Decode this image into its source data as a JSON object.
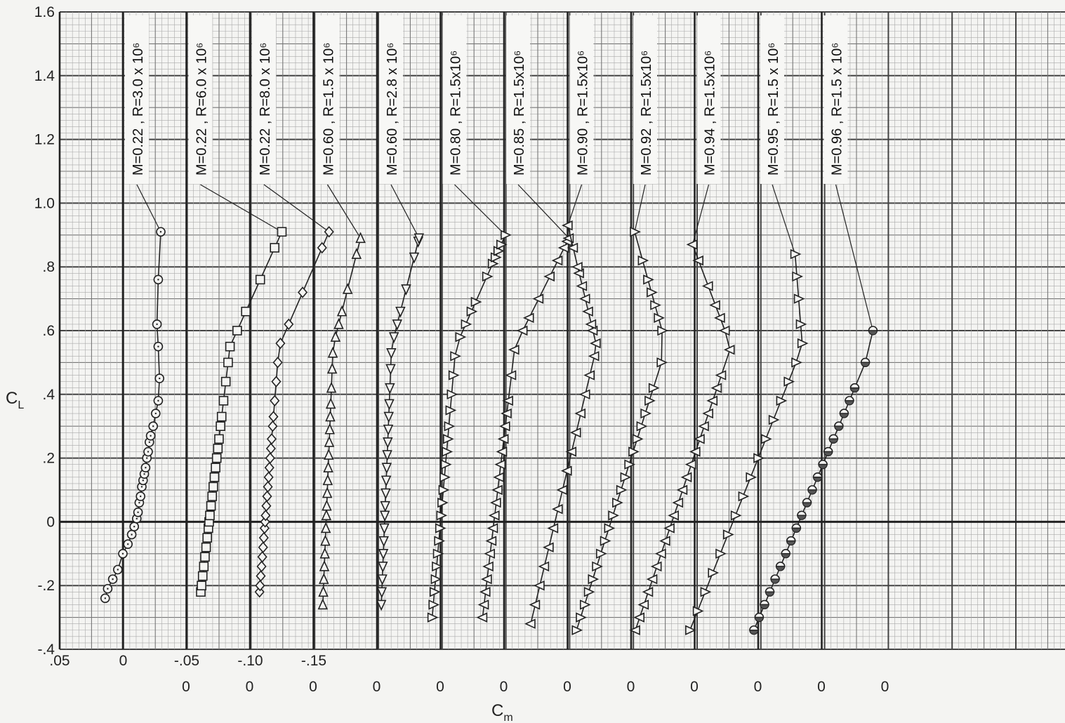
{
  "chart_data": {
    "type": "line",
    "title": "",
    "xlabel": "C",
    "xlabel_sub": "m",
    "ylabel": "C",
    "ylabel_sub": "L",
    "ylim": [
      -0.4,
      1.6
    ],
    "y_ticks": [
      "1.6",
      "1.4",
      "1.2",
      "1.0",
      ".8",
      ".6",
      ".4",
      ".2",
      "0",
      "-.2",
      "-.4"
    ],
    "x_ticks_first_row": [
      ".05",
      "0",
      "-.05",
      "-.10",
      "-.15"
    ],
    "x_ticks_offset_zeros": [
      "0",
      "0",
      "0",
      "0",
      "0",
      "0",
      "0",
      "0",
      "0",
      "0",
      "0",
      "0"
    ],
    "grid": true,
    "series": [
      {
        "name": "M=0.22 , R=3.0 x 10⁶",
        "marker": "circle",
        "x": [
          0.014,
          0.012,
          0.008,
          0.004,
          0.0,
          -0.004,
          -0.007,
          -0.009,
          -0.011,
          -0.012,
          -0.013,
          -0.014,
          -0.015,
          -0.016,
          -0.017,
          -0.018,
          -0.019,
          -0.02,
          -0.021,
          -0.022,
          -0.024,
          -0.026,
          -0.028,
          -0.029,
          -0.028,
          -0.027,
          -0.028,
          -0.03
        ],
        "y": [
          -0.24,
          -0.21,
          -0.18,
          -0.15,
          -0.1,
          -0.07,
          -0.04,
          -0.015,
          0.01,
          0.03,
          0.06,
          0.08,
          0.11,
          0.13,
          0.15,
          0.17,
          0.2,
          0.22,
          0.25,
          0.27,
          0.3,
          0.34,
          0.38,
          0.45,
          0.55,
          0.62,
          0.76,
          0.91
        ]
      },
      {
        "name": "M=0.22 , R=6.0 x 10⁶",
        "marker": "square",
        "y": [
          -0.22,
          -0.2,
          -0.17,
          -0.14,
          -0.11,
          -0.08,
          -0.05,
          -0.02,
          0.0,
          0.02,
          0.05,
          0.08,
          0.11,
          0.14,
          0.17,
          0.2,
          0.23,
          0.26,
          0.3,
          0.33,
          0.38,
          0.44,
          0.5,
          0.55,
          0.6,
          0.66,
          0.76,
          0.86,
          0.91
        ]
      },
      {
        "name": "M=0.22 , R=8.0 x 10⁶",
        "marker": "diamond",
        "y": [
          -0.22,
          -0.2,
          -0.17,
          -0.14,
          -0.11,
          -0.08,
          -0.05,
          -0.02,
          0.0,
          0.02,
          0.05,
          0.08,
          0.11,
          0.14,
          0.17,
          0.2,
          0.23,
          0.26,
          0.3,
          0.33,
          0.38,
          0.44,
          0.5,
          0.56,
          0.62,
          0.72,
          0.86,
          0.91
        ]
      },
      {
        "name": "M=0.60 , R=1.5 x 10⁶",
        "marker": "triangle-up",
        "y": [
          -0.26,
          -0.22,
          -0.18,
          -0.14,
          -0.1,
          -0.06,
          -0.02,
          0.02,
          0.05,
          0.09,
          0.13,
          0.17,
          0.21,
          0.25,
          0.29,
          0.33,
          0.37,
          0.42,
          0.48,
          0.53,
          0.58,
          0.62,
          0.66,
          0.73,
          0.84,
          0.89
        ]
      },
      {
        "name": "M=0.60 , R=2.8 x 10⁶",
        "marker": "triangle-down",
        "y": [
          -0.26,
          -0.22,
          -0.18,
          -0.14,
          -0.1,
          -0.06,
          -0.02,
          0.02,
          0.05,
          0.09,
          0.13,
          0.17,
          0.21,
          0.25,
          0.29,
          0.33,
          0.37,
          0.42,
          0.48,
          0.53,
          0.58,
          0.62,
          0.66,
          0.73,
          0.83,
          0.88,
          0.89
        ]
      },
      {
        "name": "M=0.80 , R=1.5x10⁶",
        "marker": "triangle-right",
        "y": [
          -0.3,
          -0.26,
          -0.22,
          -0.18,
          -0.14,
          -0.1,
          -0.06,
          -0.02,
          0.02,
          0.06,
          0.1,
          0.14,
          0.18,
          0.22,
          0.26,
          0.3,
          0.35,
          0.4,
          0.46,
          0.52,
          0.58,
          0.62,
          0.66,
          0.69,
          0.77,
          0.81,
          0.83,
          0.85,
          0.87,
          0.9
        ]
      },
      {
        "name": "M=0.85 , R=1.5x10⁶",
        "marker": "triangle-left",
        "y": [
          -0.3,
          -0.26,
          -0.22,
          -0.18,
          -0.14,
          -0.1,
          -0.06,
          -0.02,
          0.02,
          0.06,
          0.1,
          0.14,
          0.18,
          0.22,
          0.26,
          0.3,
          0.34,
          0.38,
          0.46,
          0.54,
          0.6,
          0.64,
          0.7,
          0.77,
          0.82,
          0.86,
          0.88,
          0.89
        ]
      },
      {
        "name": "M=0.90 , R=1.5x10⁶",
        "marker": "triangle-left",
        "y": [
          -0.32,
          -0.26,
          -0.2,
          -0.14,
          -0.08,
          -0.02,
          0.04,
          0.1,
          0.16,
          0.22,
          0.28,
          0.34,
          0.4,
          0.46,
          0.52,
          0.56,
          0.6,
          0.62,
          0.66,
          0.7,
          0.74,
          0.78,
          0.8,
          0.86,
          0.93
        ]
      },
      {
        "name": "M=0.92 , R=1.5x10⁶",
        "marker": "triangle-right",
        "y": [
          -0.34,
          -0.3,
          -0.26,
          -0.22,
          -0.18,
          -0.14,
          -0.1,
          -0.06,
          -0.02,
          0.02,
          0.06,
          0.1,
          0.14,
          0.18,
          0.22,
          0.26,
          0.3,
          0.34,
          0.38,
          0.42,
          0.5,
          0.6,
          0.64,
          0.68,
          0.72,
          0.76,
          0.82,
          0.91
        ]
      },
      {
        "name": "M=0.94 , R=1.5x10⁶",
        "marker": "triangle-left",
        "y": [
          -0.34,
          -0.3,
          -0.26,
          -0.22,
          -0.18,
          -0.14,
          -0.1,
          -0.06,
          -0.02,
          0.02,
          0.06,
          0.1,
          0.14,
          0.18,
          0.22,
          0.26,
          0.3,
          0.34,
          0.38,
          0.42,
          0.46,
          0.54,
          0.6,
          0.64,
          0.68,
          0.74,
          0.82,
          0.87
        ]
      },
      {
        "name": "M=0.95 , R=1.5 x 10⁶",
        "marker": "triangle-right",
        "y": [
          -0.34,
          -0.28,
          -0.22,
          -0.16,
          -0.1,
          -0.04,
          0.02,
          0.08,
          0.14,
          0.2,
          0.26,
          0.32,
          0.38,
          0.44,
          0.5,
          0.56,
          0.62,
          0.7,
          0.77,
          0.84
        ]
      },
      {
        "name": "M=0.96 , R=1.5 x 10⁶",
        "marker": "half-filled",
        "y": [
          -0.34,
          -0.3,
          -0.26,
          -0.22,
          -0.18,
          -0.14,
          -0.1,
          -0.06,
          -0.02,
          0.02,
          0.06,
          0.1,
          0.14,
          0.18,
          0.22,
          0.26,
          0.3,
          0.34,
          0.38,
          0.42,
          0.5,
          0.6
        ]
      }
    ]
  }
}
